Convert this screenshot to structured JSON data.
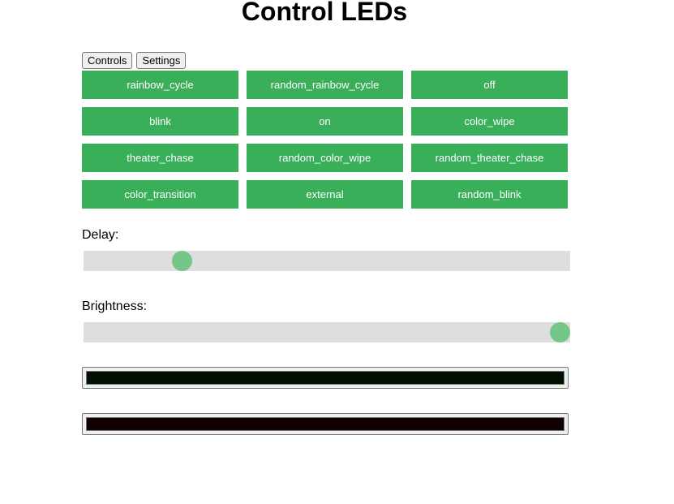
{
  "title": "Control LEDs",
  "tabs": [
    "Controls",
    "Settings"
  ],
  "modes": [
    "rainbow_cycle",
    "random_rainbow_cycle",
    "off",
    "blink",
    "on",
    "color_wipe",
    "theater_chase",
    "random_color_wipe",
    "random_theater_chase",
    "color_transition",
    "external",
    "random_blink"
  ],
  "delay": {
    "label": "Delay:",
    "value_fraction": 0.1
  },
  "brightness": {
    "label": "Brightness:",
    "value_fraction": 1.0
  },
  "colors": {
    "button": "#3aaf5a",
    "color1": "#001000",
    "color2": "#100000"
  }
}
